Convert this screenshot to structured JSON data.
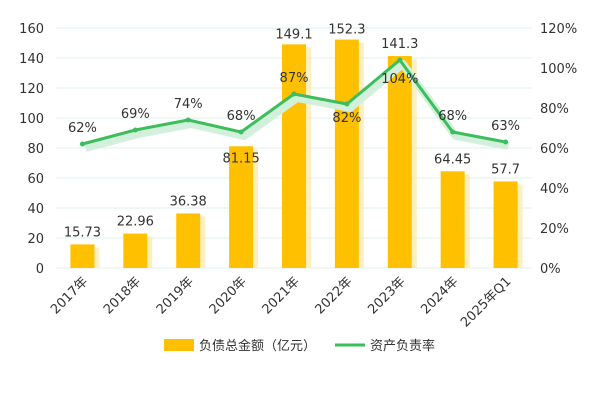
{
  "chart_data": {
    "type": "bar",
    "categories": [
      "2017年",
      "2018年",
      "2019年",
      "2020年",
      "2021年",
      "2022年",
      "2023年",
      "2024年",
      "2025年Q1"
    ],
    "series": [
      {
        "name": "负债总金额（亿元）",
        "type": "bar",
        "axis": "left",
        "values": [
          15.73,
          22.96,
          36.38,
          81.15,
          149.1,
          152.3,
          141.3,
          64.45,
          57.7
        ],
        "labels": [
          "15.73",
          "22.96",
          "36.38",
          "81.15",
          "149.1",
          "152.3",
          "141.3",
          "64.45",
          "57.7"
        ],
        "color": "#FFC000"
      },
      {
        "name": "资产负责率",
        "type": "line",
        "axis": "right",
        "values": [
          62,
          69,
          74,
          68,
          87,
          82,
          104,
          68,
          63
        ],
        "labels": [
          "62%",
          "69%",
          "74%",
          "68%",
          "87%",
          "82%",
          "104%",
          "68%",
          "63%"
        ],
        "color": "#3DBE5C"
      }
    ],
    "y_left": {
      "ticks": [
        0,
        20,
        40,
        60,
        80,
        100,
        120,
        140,
        160
      ],
      "ylim": [
        0,
        160
      ]
    },
    "y_right": {
      "ticks": [
        "0%",
        "20%",
        "40%",
        "60%",
        "80%",
        "100%",
        "120%"
      ],
      "ylim": [
        0,
        120
      ]
    },
    "grid": true,
    "legend_position": "bottom"
  }
}
